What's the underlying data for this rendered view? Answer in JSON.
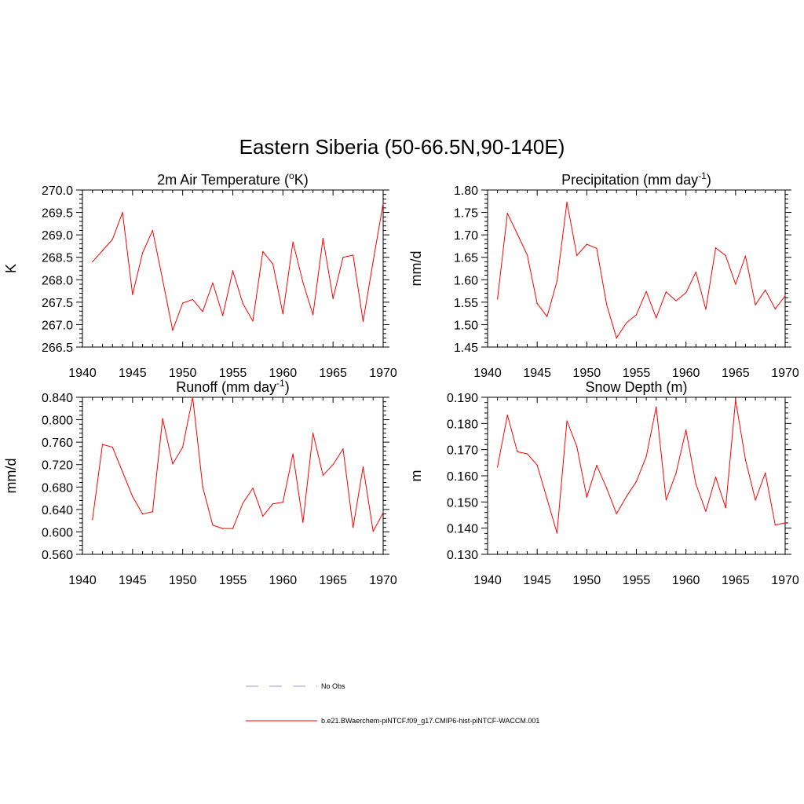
{
  "main_title": "Eastern Siberia (50-66.5N,90-140E)",
  "legend": {
    "items": [
      {
        "label": "No Obs",
        "color": "#9999dd",
        "style": "dashed"
      },
      {
        "label": "b.e21.BWaerchem-piNTCF.f09_g17.CMIP6-hist-piNTCF-WACCM.001",
        "color": "#ff0000",
        "style": "solid"
      }
    ]
  },
  "chart_data": [
    {
      "type": "line",
      "title": "2m Air Temperature (°K)",
      "title_parts": {
        "pre": "2m Air Temperature (",
        "sup": "o",
        "post": "K)"
      },
      "ylabel": "K",
      "xlim": [
        1940,
        1970
      ],
      "ylim": [
        266.5,
        270.0
      ],
      "xticks": [
        1940,
        1945,
        1950,
        1955,
        1960,
        1965,
        1970
      ],
      "yticks": [
        "266.5",
        "267.0",
        "267.5",
        "268.0",
        "268.5",
        "269.0",
        "269.5",
        "270.0"
      ],
      "series": [
        {
          "color": "#ff0000",
          "x": [
            1941,
            1942,
            1943,
            1944,
            1945,
            1946,
            1947,
            1948,
            1949,
            1950,
            1951,
            1952,
            1953,
            1954,
            1955,
            1956,
            1957,
            1958,
            1959,
            1960,
            1961,
            1962,
            1963,
            1964,
            1965,
            1966,
            1967,
            1968,
            1969,
            1970
          ],
          "y": [
            268.4,
            268.65,
            268.9,
            269.5,
            267.67,
            268.6,
            269.1,
            268.0,
            266.87,
            267.48,
            267.56,
            267.29,
            267.93,
            267.2,
            268.2,
            267.47,
            267.08,
            268.63,
            268.35,
            267.24,
            268.84,
            267.94,
            267.22,
            268.92,
            267.58,
            268.5,
            268.55,
            267.07,
            268.41,
            269.7
          ]
        }
      ]
    },
    {
      "type": "line",
      "title": "Precipitation (mm day-1)",
      "title_parts": {
        "pre": "Precipitation (mm day",
        "sup": "-1",
        "post": ")"
      },
      "ylabel": "mm/d",
      "xlim": [
        1940,
        1970
      ],
      "ylim": [
        1.45,
        1.8
      ],
      "xticks": [
        1940,
        1945,
        1950,
        1955,
        1960,
        1965,
        1970
      ],
      "yticks": [
        "1.45",
        "1.50",
        "1.55",
        "1.60",
        "1.65",
        "1.70",
        "1.75",
        "1.80"
      ],
      "series": [
        {
          "color": "#ff0000",
          "x": [
            1941,
            1942,
            1943,
            1944,
            1945,
            1946,
            1947,
            1948,
            1949,
            1950,
            1951,
            1952,
            1953,
            1954,
            1955,
            1956,
            1957,
            1958,
            1959,
            1960,
            1961,
            1962,
            1963,
            1964,
            1965,
            1966,
            1967,
            1968,
            1969,
            1970
          ],
          "y": [
            1.557,
            1.748,
            1.702,
            1.655,
            1.547,
            1.518,
            1.597,
            1.773,
            1.654,
            1.679,
            1.67,
            1.545,
            1.47,
            1.504,
            1.522,
            1.574,
            1.515,
            1.573,
            1.553,
            1.571,
            1.617,
            1.534,
            1.671,
            1.654,
            1.59,
            1.653,
            1.544,
            1.577,
            1.535,
            1.564
          ]
        }
      ]
    },
    {
      "type": "line",
      "title": "Runoff (mm day-1)",
      "title_parts": {
        "pre": "Runoff (mm day",
        "sup": "-1",
        "post": ")"
      },
      "ylabel": "mm/d",
      "xlim": [
        1940,
        1970
      ],
      "ylim": [
        0.56,
        0.84
      ],
      "xticks": [
        1940,
        1945,
        1950,
        1955,
        1960,
        1965,
        1970
      ],
      "yticks": [
        "0.560",
        "0.600",
        "0.640",
        "0.680",
        "0.720",
        "0.760",
        "0.800",
        "0.840"
      ],
      "series": [
        {
          "color": "#ff0000",
          "x": [
            1941,
            1942,
            1943,
            1944,
            1945,
            1946,
            1947,
            1948,
            1949,
            1950,
            1951,
            1952,
            1953,
            1954,
            1955,
            1956,
            1957,
            1958,
            1959,
            1960,
            1961,
            1962,
            1963,
            1964,
            1965,
            1966,
            1967,
            1968,
            1969,
            1970
          ],
          "y": [
            0.622,
            0.756,
            0.751,
            0.707,
            0.663,
            0.632,
            0.636,
            0.802,
            0.721,
            0.751,
            0.84,
            0.68,
            0.612,
            0.606,
            0.606,
            0.651,
            0.678,
            0.628,
            0.65,
            0.653,
            0.739,
            0.617,
            0.776,
            0.701,
            0.72,
            0.748,
            0.608,
            0.716,
            0.601,
            0.634
          ]
        }
      ]
    },
    {
      "type": "line",
      "title": "Snow Depth (m)",
      "title_parts": {
        "pre": "Snow Depth (m)",
        "sup": "",
        "post": ""
      },
      "ylabel": "m",
      "xlim": [
        1940,
        1970
      ],
      "ylim": [
        0.13,
        0.19
      ],
      "xticks": [
        1940,
        1945,
        1950,
        1955,
        1960,
        1965,
        1970
      ],
      "yticks": [
        "0.130",
        "0.140",
        "0.150",
        "0.160",
        "0.170",
        "0.180",
        "0.190"
      ],
      "series": [
        {
          "color": "#ff0000",
          "x": [
            1941,
            1942,
            1943,
            1944,
            1945,
            1946,
            1947,
            1948,
            1949,
            1950,
            1951,
            1952,
            1953,
            1954,
            1955,
            1956,
            1957,
            1958,
            1959,
            1960,
            1961,
            1962,
            1963,
            1964,
            1965,
            1966,
            1967,
            1968,
            1969,
            1970
          ],
          "y": [
            0.1634,
            0.1832,
            0.1692,
            0.1684,
            0.1641,
            0.1511,
            0.1381,
            0.181,
            0.1712,
            0.1518,
            0.164,
            0.1553,
            0.1455,
            0.1521,
            0.1578,
            0.1674,
            0.1863,
            0.1508,
            0.161,
            0.1775,
            0.1569,
            0.1464,
            0.1595,
            0.1478,
            0.189,
            0.1661,
            0.1507,
            0.1611,
            0.1412,
            0.142
          ]
        }
      ]
    }
  ]
}
